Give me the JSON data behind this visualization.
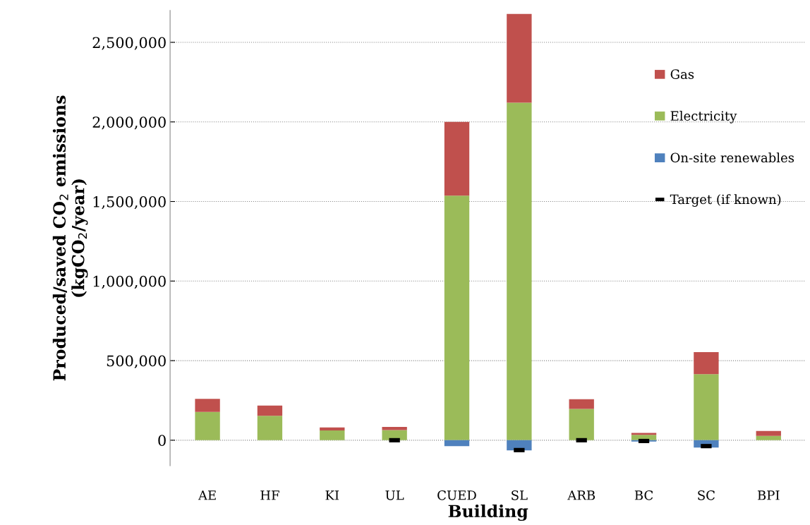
{
  "chart_data": {
    "type": "bar",
    "stacked": true,
    "xlabel": "Building",
    "ylabel": "Produced/saved CO$_{2}$ emissions\n(kgCO$_{2}$/year)",
    "categories": [
      "AE",
      "HF",
      "KI",
      "UL",
      "CUED",
      "SL",
      "ARB",
      "BC",
      "SC",
      "BPI"
    ],
    "series": [
      {
        "name": "Electricity",
        "color": "#9bbb59",
        "values": [
          178000,
          153000,
          61000,
          64000,
          1537000,
          2121000,
          197000,
          34000,
          415000,
          27000
        ]
      },
      {
        "name": "Gas",
        "color": "#c0504d",
        "values": [
          82000,
          65000,
          19000,
          19000,
          463000,
          557000,
          61000,
          12000,
          138000,
          31000
        ]
      },
      {
        "name": "On-site renewables",
        "color": "#4f81bd",
        "values": [
          0,
          0,
          0,
          0,
          -37000,
          -64000,
          0,
          -9000,
          -46000,
          0
        ]
      },
      {
        "name": "Target (if known)",
        "type": "scatter",
        "marker": "square",
        "color": "#000000",
        "values": [
          null,
          null,
          null,
          0,
          null,
          -62000,
          0,
          -5000,
          -37000,
          null
        ]
      }
    ],
    "ylim": [
      -160000,
      2700000
    ],
    "yticks": [
      {
        "value": 0,
        "label": "0"
      },
      {
        "value": 500000,
        "label": "500,000"
      },
      {
        "value": 1000000,
        "label": "1,000,000"
      },
      {
        "value": 1500000,
        "label": "1,500,000"
      },
      {
        "value": 2000000,
        "label": "2,000,000"
      },
      {
        "value": 2500000,
        "label": "2,500,000"
      }
    ],
    "grid": "y",
    "legend": "right"
  }
}
